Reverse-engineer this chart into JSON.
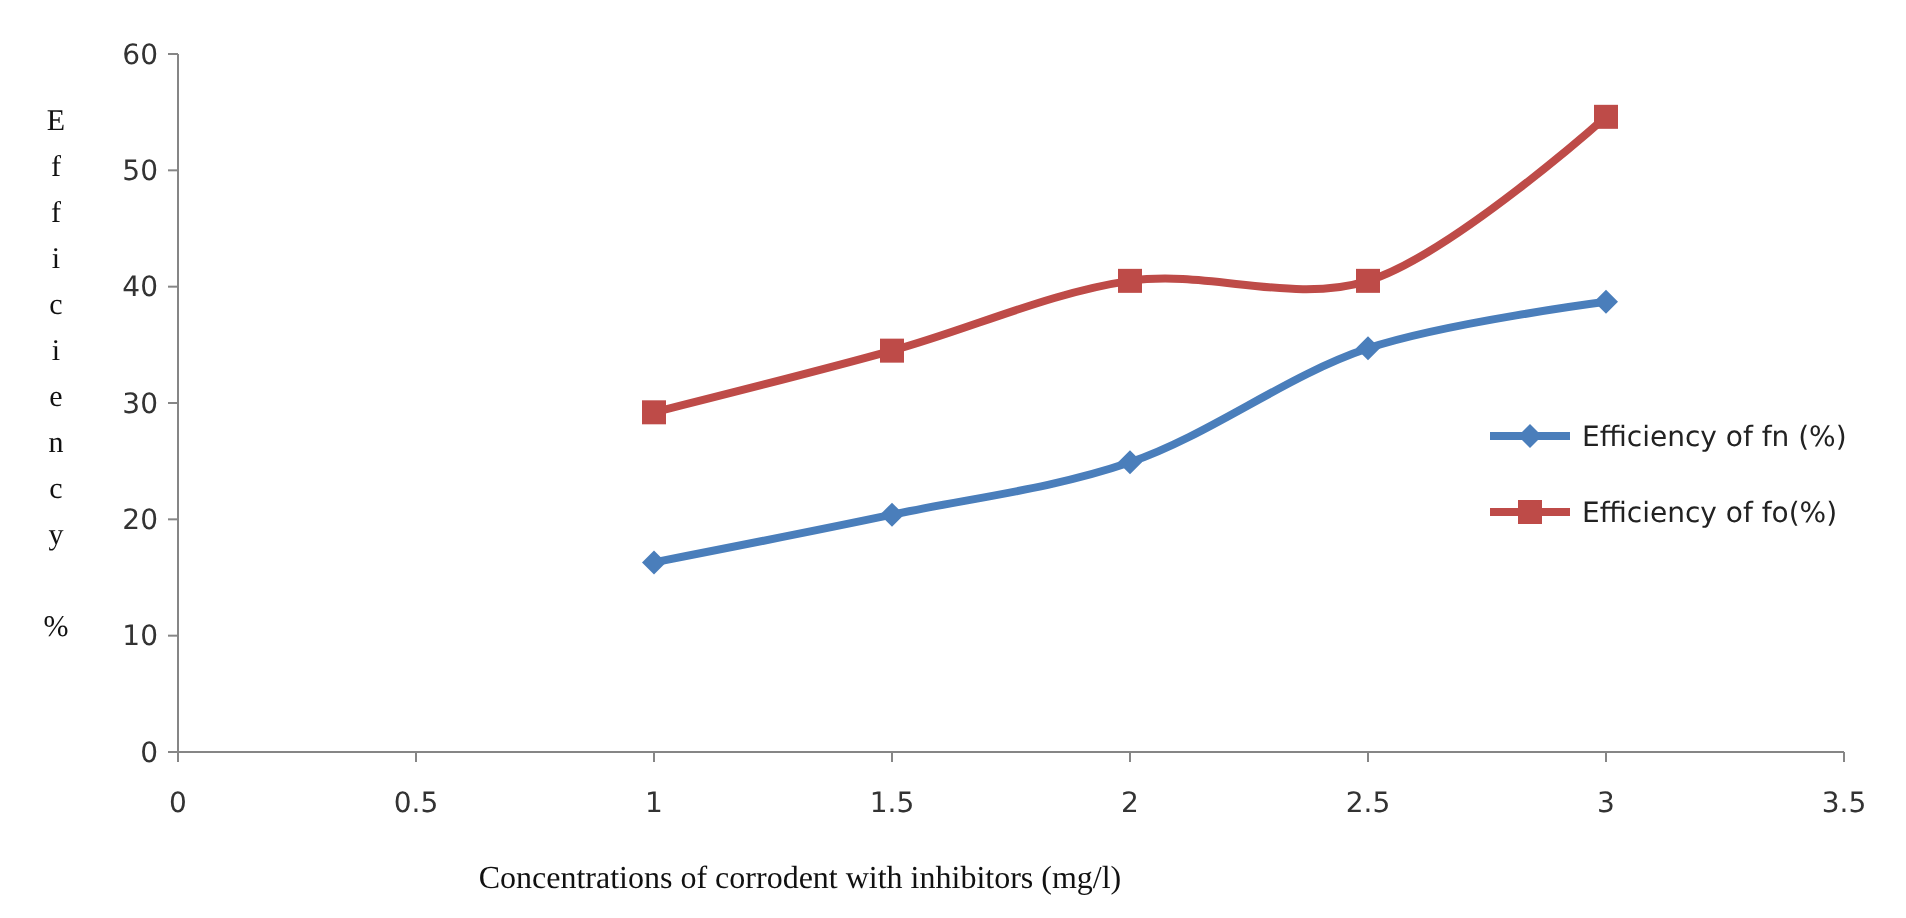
{
  "chart_data": {
    "type": "line",
    "xlabel": "Concentrations of corrodent with inhibitors (mg/l)",
    "ylabel": "Efficiency %",
    "x": [
      1,
      1.5,
      2,
      2.5,
      3
    ],
    "series": [
      {
        "name": "Efficiency of fn (%)",
        "color": "#4a7ebb",
        "marker": "diamond",
        "values": [
          16.3,
          20.4,
          24.9,
          34.7,
          38.7
        ]
      },
      {
        "name": "Efficiency of fo(%)",
        "color": "#be4b48",
        "marker": "square",
        "values": [
          29.2,
          34.5,
          40.5,
          40.5,
          54.6
        ]
      }
    ],
    "xlim": [
      0,
      3.5
    ],
    "xticks": [
      0,
      0.5,
      1,
      1.5,
      2,
      2.5,
      3,
      3.5
    ],
    "ylim": [
      0,
      60
    ],
    "yticks": [
      0,
      10,
      20,
      30,
      40,
      50,
      60
    ],
    "grid": false,
    "legend": "right"
  }
}
